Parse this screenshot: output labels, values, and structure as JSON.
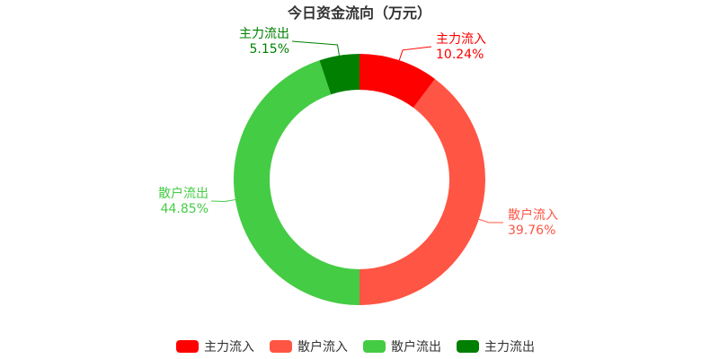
{
  "chart_data": {
    "type": "pie",
    "title": "今日资金流向（万元）",
    "series": [
      {
        "name": "主力流入",
        "value": 10.24,
        "label_pct": "10.24%",
        "color": "#ff0000"
      },
      {
        "name": "散户流入",
        "value": 39.76,
        "label_pct": "39.76%",
        "color": "#ff5544"
      },
      {
        "name": "散户流出",
        "value": 44.85,
        "label_pct": "44.85%",
        "color": "#44cc44"
      },
      {
        "name": "主力流出",
        "value": 5.15,
        "label_pct": "5.15%",
        "color": "#007f00"
      }
    ],
    "legend_position": "bottom",
    "donut": true,
    "start": "top",
    "direction": "clockwise"
  }
}
